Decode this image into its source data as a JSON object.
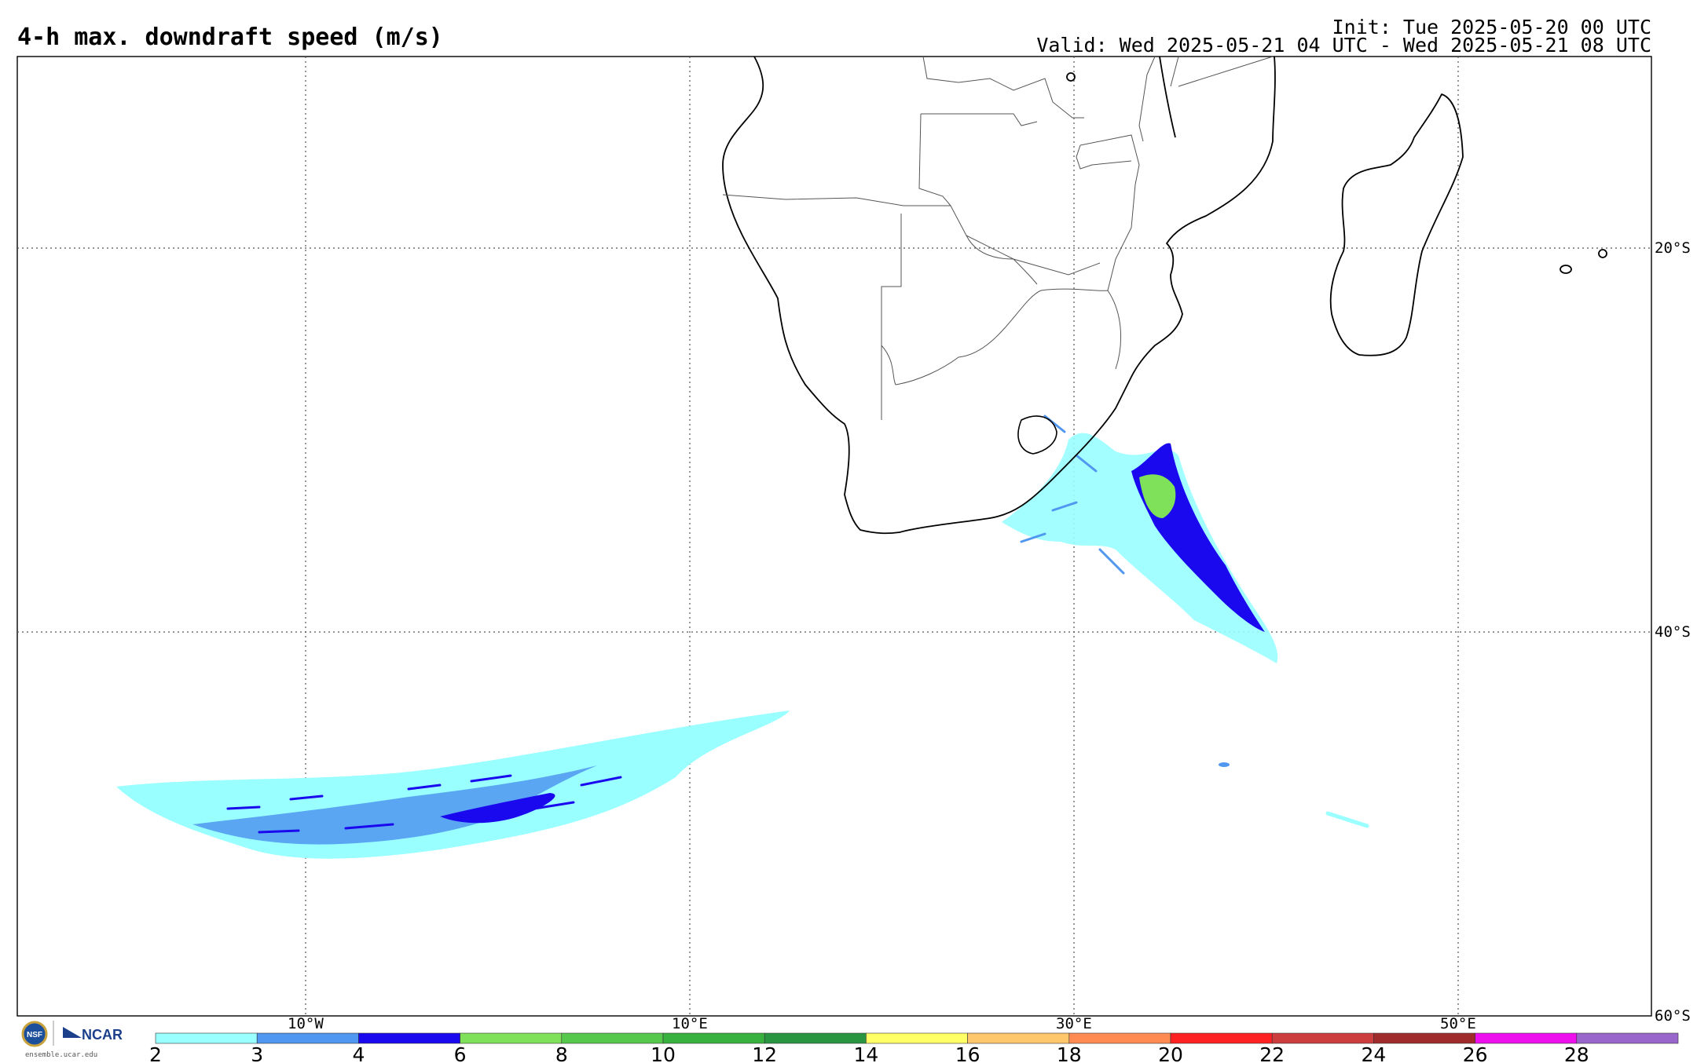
{
  "title": "4-h max. downdraft speed (m/s)",
  "init_text": "Init: Tue 2025-05-20 00 UTC",
  "valid_text": "Valid: Wed 2025-05-21 04 UTC - Wed 2025-05-21 08 UTC",
  "map": {
    "region": "Southern Africa and South Atlantic / Indian Ocean",
    "lon_labels": [
      "10°W",
      "10°E",
      "30°E",
      "50°E"
    ],
    "lat_labels": [
      "20°S",
      "40°S",
      "60°S"
    ],
    "gridlines": "dotted"
  },
  "colorbar": {
    "ticks": [
      "2",
      "3",
      "4",
      "6",
      "8",
      "10",
      "12",
      "14",
      "16",
      "18",
      "20",
      "22",
      "24",
      "26",
      "28"
    ],
    "colors": [
      "#99ffff",
      "#4f97f0",
      "#1a08ee",
      "#7fe05a",
      "#56c84c",
      "#39b13e",
      "#2a9540",
      "#ffff66",
      "#ffc76b",
      "#ff8a52",
      "#ff2222",
      "#cc3d3d",
      "#a02b2b",
      "#ee11ee",
      "#9966cc"
    ]
  },
  "logo": {
    "nsf_label": "NSF",
    "ncar_label": "NCAR",
    "url": "ensemble.ucar.edu"
  }
}
